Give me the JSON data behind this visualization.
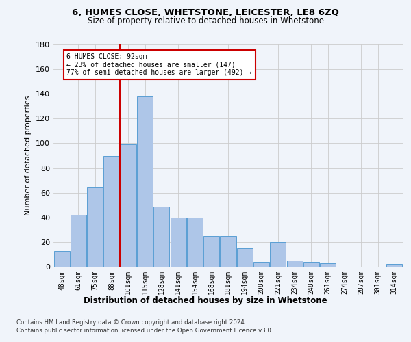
{
  "title1": "6, HUMES CLOSE, WHETSTONE, LEICESTER, LE8 6ZQ",
  "title2": "Size of property relative to detached houses in Whetstone",
  "xlabel": "Distribution of detached houses by size in Whetstone",
  "ylabel": "Number of detached properties",
  "bar_values": [
    13,
    42,
    64,
    90,
    99,
    138,
    49,
    40,
    40,
    25,
    25,
    15,
    4,
    20,
    5,
    4,
    3,
    0,
    0,
    0,
    2
  ],
  "bar_labels": [
    "48sqm",
    "61sqm",
    "75sqm",
    "88sqm",
    "101sqm",
    "115sqm",
    "128sqm",
    "141sqm",
    "154sqm",
    "168sqm",
    "181sqm",
    "194sqm",
    "208sqm",
    "221sqm",
    "234sqm",
    "248sqm",
    "261sqm",
    "274sqm",
    "287sqm",
    "301sqm",
    "314sqm"
  ],
  "bar_color": "#aec6e8",
  "bar_edge_color": "#5a9fd4",
  "vline_x": 3.5,
  "vline_color": "#cc0000",
  "annotation_text": "6 HUMES CLOSE: 92sqm\n← 23% of detached houses are smaller (147)\n77% of semi-detached houses are larger (492) →",
  "annotation_box_color": "#ffffff",
  "annotation_box_edge": "#cc0000",
  "ylim": [
    0,
    180
  ],
  "yticks": [
    0,
    20,
    40,
    60,
    80,
    100,
    120,
    140,
    160,
    180
  ],
  "footer1": "Contains HM Land Registry data © Crown copyright and database right 2024.",
  "footer2": "Contains public sector information licensed under the Open Government Licence v3.0.",
  "bg_color": "#f0f4fa",
  "grid_color": "#cccccc"
}
